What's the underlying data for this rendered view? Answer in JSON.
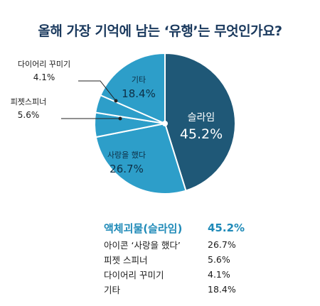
{
  "title": "올해 가장 기억에 남는 ‘유행’는 무엇인가요?",
  "chart_data": {
    "type": "pie",
    "slices": [
      {
        "label": "슬라임",
        "value": 45.2,
        "display": "45.2%",
        "color": "#1f5877",
        "label_color": "#ffffff"
      },
      {
        "label": "사랑을 했다",
        "value": 26.7,
        "display": "26.7%",
        "color": "#2d9ec9",
        "label_color": "#0d2f45"
      },
      {
        "label": "피젯스피너",
        "value": 5.6,
        "display": "5.6%",
        "color": "#2d9ec9",
        "label_color": "#1a1a1a"
      },
      {
        "label": "다이어리 꾸미기",
        "value": 4.1,
        "display": "4.1%",
        "color": "#2d9ec9",
        "label_color": "#1a1a1a"
      },
      {
        "label": "기타",
        "value": 18.4,
        "display": "18.4%",
        "color": "#2d9ec9",
        "label_color": "#0d2f45"
      }
    ]
  },
  "legend": [
    {
      "label": "액체괴물(슬라임)",
      "value": "45.2%",
      "highlight": true
    },
    {
      "label": "아이콘 ‘사랑을 했다’",
      "value": "26.7%",
      "highlight": false
    },
    {
      "label": "피젯 스피너",
      "value": "5.6%",
      "highlight": false
    },
    {
      "label": "다이어리 꾸미기",
      "value": "4.1%",
      "highlight": false
    },
    {
      "label": "기타",
      "value": "18.4%",
      "highlight": false
    }
  ]
}
